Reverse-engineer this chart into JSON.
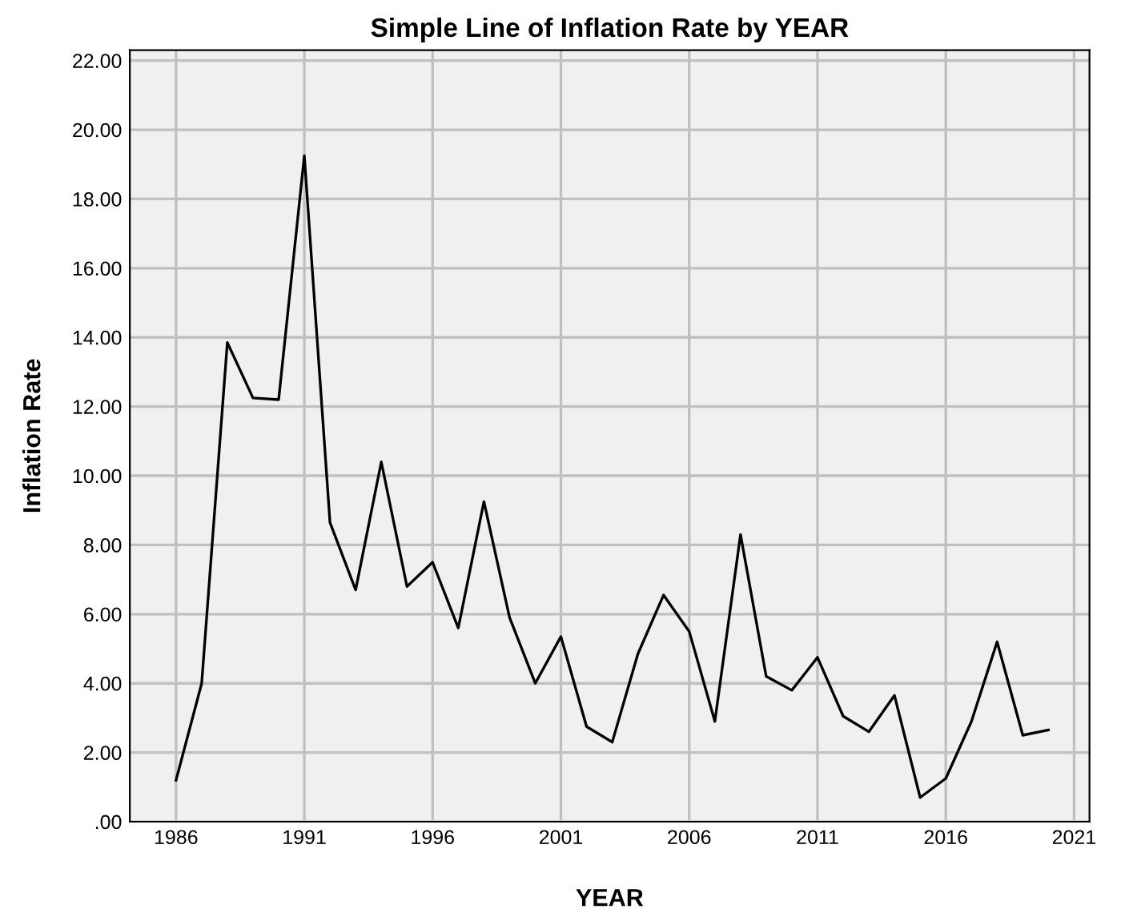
{
  "chart_data": {
    "type": "line",
    "title": "Simple Line of Inflation Rate by YEAR",
    "xlabel": "YEAR",
    "ylabel": "Inflation Rate",
    "x": [
      1986,
      1987,
      1988,
      1989,
      1990,
      1991,
      1992,
      1993,
      1994,
      1995,
      1996,
      1997,
      1998,
      1999,
      2000,
      2001,
      2002,
      2003,
      2004,
      2005,
      2006,
      2007,
      2008,
      2009,
      2010,
      2011,
      2012,
      2013,
      2014,
      2015,
      2016,
      2017,
      2018,
      2019,
      2020
    ],
    "series": [
      {
        "color": "#000000",
        "values": [
          1.2,
          4.0,
          13.85,
          12.25,
          12.2,
          19.25,
          8.65,
          6.7,
          10.4,
          6.8,
          7.5,
          5.6,
          9.25,
          5.9,
          4.0,
          5.35,
          2.75,
          2.3,
          4.85,
          6.55,
          5.5,
          2.9,
          8.3,
          4.2,
          3.8,
          4.75,
          3.05,
          2.6,
          3.65,
          0.7,
          1.25,
          2.9,
          5.2,
          2.5,
          2.65
        ]
      }
    ],
    "xlim": [
      1984.2,
      2021.6
    ],
    "xticks": [
      1986,
      1991,
      1996,
      2001,
      2006,
      2011,
      2016,
      2021
    ],
    "ylim": [
      0,
      22.3
    ],
    "yticks": [
      {
        "value": 0,
        "label": ".00"
      },
      {
        "value": 2,
        "label": "2.00"
      },
      {
        "value": 4,
        "label": "4.00"
      },
      {
        "value": 6,
        "label": "6.00"
      },
      {
        "value": 8,
        "label": "8.00"
      },
      {
        "value": 10,
        "label": "10.00"
      },
      {
        "value": 12,
        "label": "12.00"
      },
      {
        "value": 14,
        "label": "14.00"
      },
      {
        "value": 16,
        "label": "16.00"
      },
      {
        "value": 18,
        "label": "18.00"
      },
      {
        "value": 20,
        "label": "20.00"
      },
      {
        "value": 22,
        "label": "22.00"
      }
    ],
    "grid": true,
    "marker": "none",
    "line_style": "solid"
  }
}
